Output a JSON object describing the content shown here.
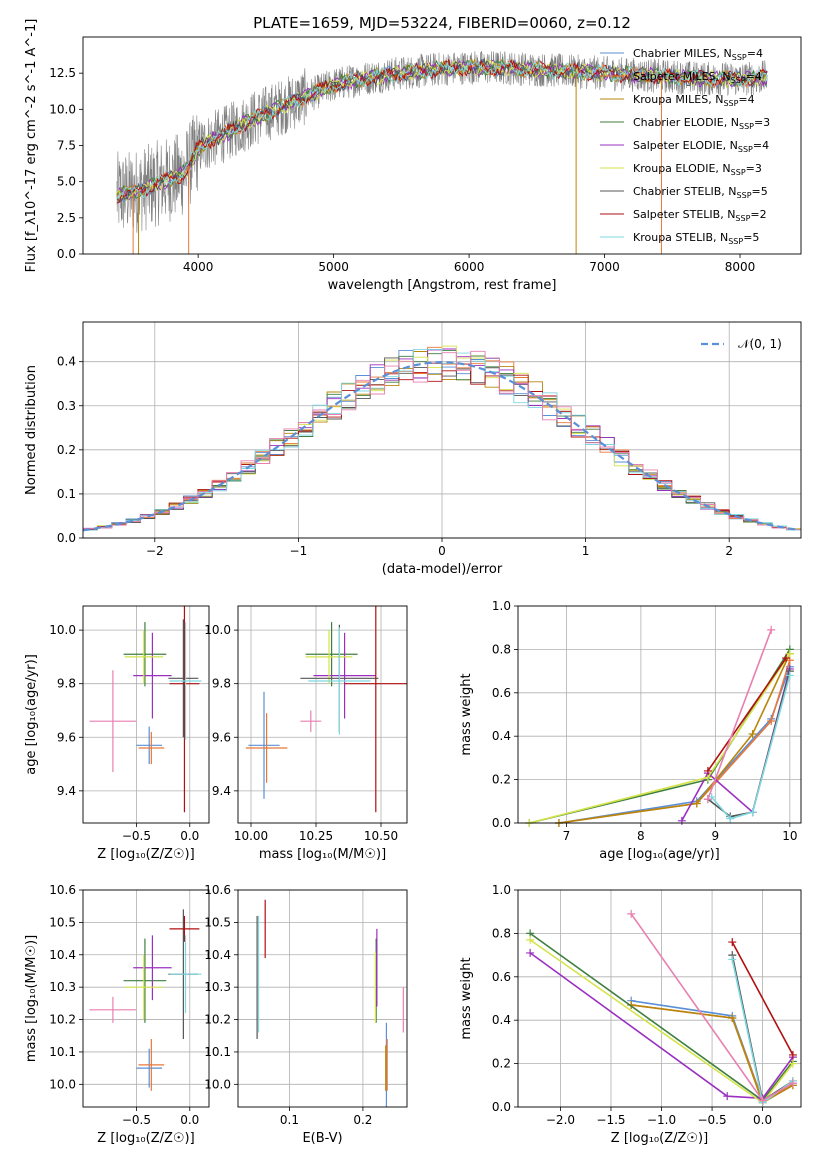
{
  "figure": {
    "title": "PLATE=1659, MJD=53224, FIBERID=0060, z=0.12"
  },
  "colors": {
    "Chabrier MILES": "#5b8fd6",
    "Salpeter MILES": "#e8773a",
    "Kroupa MILES": "#b8860b",
    "Chabrier ELODIE": "#3f7f3f",
    "Salpeter ELODIE": "#9b30c0",
    "Kroupa ELODIE": "#d4e34a",
    "Chabrier STELIB": "#555555",
    "Salpeter STELIB": "#b01010",
    "Kroupa STELIB": "#7fd8e0",
    "extra pink": "#e87fb0",
    "normal": "#5b8fd6",
    "data": "#808080"
  },
  "chart_data": [
    {
      "id": "spectrum",
      "type": "line",
      "xlabel": "wavelength [Angstrom, rest frame]",
      "ylabel": "Flux [f_λ10^-17 erg cm^-2 s^-1 A^-1]",
      "xlim": [
        3150,
        8450
      ],
      "ylim": [
        0,
        15.0
      ],
      "xticks": [
        4000,
        5000,
        6000,
        7000,
        8000
      ],
      "yticks": [
        0.0,
        2.5,
        5.0,
        7.5,
        10.0,
        12.5
      ],
      "ytick_labels": [
        "0.0",
        "2.5",
        "5.0",
        "7.5",
        "10.0",
        "12.5"
      ],
      "legend_location": "upper-right",
      "legend": [
        "Chabrier MILES, N_SSP=4",
        "Salpeter MILES, N_SSP=4",
        "Kroupa MILES, N_SSP=4",
        "Chabrier ELODIE, N_SSP=3",
        "Salpeter ELODIE, N_SSP=4",
        "Kroupa ELODIE, N_SSP=3",
        "Chabrier STELIB, N_SSP=5",
        "Salpeter STELIB, N_SSP=2",
        "Kroupa STELIB, N_SSP=5"
      ],
      "legend_main": [
        "Chabrier MILES, N",
        "Salpeter MILES, N",
        "Kroupa MILES, N",
        "Chabrier ELODIE, N",
        "Salpeter ELODIE, N",
        "Kroupa ELODIE, N",
        "Chabrier STELIB, N",
        "Salpeter STELIB, N",
        "Kroupa STELIB, N"
      ],
      "legend_sub": "SSP",
      "legend_n": [
        "=4",
        "=4",
        "=4",
        "=3",
        "=4",
        "=3",
        "=5",
        "=2",
        "=5"
      ],
      "continuum_x": [
        3400,
        3500,
        3600,
        3700,
        3800,
        3900,
        3950,
        4000,
        4100,
        4200,
        4300,
        4400,
        4500,
        4600,
        4700,
        4800,
        4900,
        5000,
        5200,
        5400,
        5600,
        5800,
        6000,
        6200,
        6400,
        6600,
        6800,
        7000,
        7200,
        7400,
        7600,
        7800,
        8000,
        8200
      ],
      "continuum_y": [
        4.1,
        4.2,
        4.5,
        4.9,
        5.2,
        5.6,
        6.4,
        7.3,
        7.9,
        8.3,
        8.8,
        9.3,
        9.7,
        10.1,
        10.5,
        10.9,
        11.3,
        11.7,
        12.1,
        12.4,
        12.6,
        12.8,
        12.9,
        12.9,
        12.8,
        12.7,
        12.6,
        12.5,
        12.4,
        12.3,
        12.2,
        12.1,
        12.1,
        12.2
      ]
    },
    {
      "id": "residuals",
      "type": "histogram",
      "xlabel": "(data-model)/error",
      "ylabel": "Normed distribution",
      "xlim": [
        -2.5,
        2.5
      ],
      "ylim": [
        0,
        0.49
      ],
      "xticks": [
        -2,
        -1,
        0,
        1,
        2
      ],
      "xtick_labels": [
        "−2",
        "−1",
        "0",
        "1",
        "2"
      ],
      "yticks": [
        0.0,
        0.1,
        0.2,
        0.3,
        0.4
      ],
      "ytick_labels": [
        "0.0",
        "0.1",
        "0.2",
        "0.3",
        "0.4"
      ],
      "legend_location": "top-right",
      "legend_label": "𝒩(0, 1)",
      "bin_width": 0.1
    },
    {
      "id": "age-vs-Z",
      "type": "errorbar",
      "xlabel": "Z [log₁₀(Z/Z☉)]",
      "ylabel": "age  [log₁₀(age/yr)]",
      "xlim": [
        -1.0,
        0.18
      ],
      "ylim": [
        9.28,
        10.09
      ],
      "xticks": [
        -0.5,
        0.0
      ],
      "xtick_labels": [
        "−0.5",
        "0.0"
      ],
      "yticks": [
        9.4,
        9.6,
        9.8,
        10.0
      ],
      "ytick_labels": [
        "9.4",
        "9.6",
        "9.8",
        "10.0"
      ],
      "points": [
        {
          "c": "Chabrier MILES",
          "x": -0.38,
          "xe": 0.12,
          "y": 9.57,
          "ye": 0.07
        },
        {
          "c": "Salpeter MILES",
          "x": -0.36,
          "xe": 0.12,
          "y": 9.56,
          "ye": 0.06
        },
        {
          "c": "Chabrier ELODIE",
          "x": -0.42,
          "xe": 0.2,
          "y": 9.91,
          "ye": 0.12
        },
        {
          "c": "Salpeter ELODIE",
          "x": -0.35,
          "xe": 0.18,
          "y": 9.83,
          "ye": 0.16
        },
        {
          "c": "Kroupa ELODIE",
          "x": -0.43,
          "xe": 0.18,
          "y": 9.9,
          "ye": 0.1
        },
        {
          "c": "Chabrier STELIB",
          "x": -0.06,
          "xe": 0.14,
          "y": 9.82,
          "ye": 0.22
        },
        {
          "c": "Salpeter STELIB",
          "x": -0.05,
          "xe": 0.14,
          "y": 9.8,
          "ye": 0.48
        },
        {
          "c": "Kroupa STELIB",
          "x": -0.04,
          "xe": 0.15,
          "y": 9.81,
          "ye": 0.22
        },
        {
          "c": "extra pink",
          "x": -0.72,
          "xe": 0.22,
          "y": 9.66,
          "ye": 0.19
        }
      ]
    },
    {
      "id": "age-vs-mass",
      "type": "errorbar",
      "xlabel": "mass [log₁₀(M/M☉)]",
      "ylabel": "",
      "xlim": [
        9.95,
        10.6
      ],
      "ylim": [
        9.28,
        10.09
      ],
      "xticks": [
        10.0,
        10.25,
        10.5
      ],
      "xtick_labels": [
        "10.00",
        "10.25",
        "10.50"
      ],
      "yticks": [
        9.4,
        9.6,
        9.8,
        10.0
      ],
      "ytick_labels": [
        "9.4",
        "9.6",
        "9.8",
        "10.0"
      ],
      "points": [
        {
          "c": "Chabrier MILES",
          "x": 10.05,
          "xe": 0.06,
          "y": 9.57,
          "ye": 0.2
        },
        {
          "c": "Salpeter MILES",
          "x": 10.06,
          "xe": 0.08,
          "y": 9.56,
          "ye": 0.13
        },
        {
          "c": "Chabrier ELODIE",
          "x": 10.31,
          "xe": 0.1,
          "y": 9.91,
          "ye": 0.12
        },
        {
          "c": "Salpeter ELODIE",
          "x": 10.36,
          "xe": 0.12,
          "y": 9.83,
          "ye": 0.16
        },
        {
          "c": "Kroupa ELODIE",
          "x": 10.3,
          "xe": 0.09,
          "y": 9.9,
          "ye": 0.1
        },
        {
          "c": "Chabrier STELIB",
          "x": 10.34,
          "xe": 0.15,
          "y": 9.82,
          "ye": 0.2
        },
        {
          "c": "Salpeter STELIB",
          "x": 10.48,
          "xe": 0.12,
          "y": 9.8,
          "ye": 0.48
        },
        {
          "c": "Kroupa STELIB",
          "x": 10.34,
          "xe": 0.12,
          "y": 9.81,
          "ye": 0.2
        },
        {
          "c": "extra pink",
          "x": 10.23,
          "xe": 0.04,
          "y": 9.66,
          "ye": 0.04
        }
      ]
    },
    {
      "id": "weight-vs-age",
      "type": "line",
      "xlabel": "age  [log₁₀(age/yr)]",
      "ylabel": "mass weight",
      "xlim": [
        6.35,
        10.15
      ],
      "ylim": [
        0.0,
        1.0
      ],
      "xticks": [
        7,
        8,
        9,
        10
      ],
      "xtick_labels": [
        "7",
        "8",
        "9",
        "10"
      ],
      "yticks": [
        0.0,
        0.2,
        0.4,
        0.6,
        0.8,
        1.0
      ],
      "ytick_labels": [
        "0.0",
        "0.2",
        "0.4",
        "0.6",
        "0.8",
        "1.0"
      ],
      "series": [
        {
          "c": "Chabrier MILES",
          "x": [
            6.9,
            8.75,
            9.75,
            10.0
          ],
          "y": [
            0.0,
            0.1,
            0.48,
            0.72
          ]
        },
        {
          "c": "Salpeter MILES",
          "x": [
            6.9,
            8.75,
            9.75,
            10.0
          ],
          "y": [
            0.0,
            0.09,
            0.47,
            0.75
          ]
        },
        {
          "c": "Kroupa MILES",
          "x": [
            6.9,
            8.75,
            9.5,
            10.0
          ],
          "y": [
            0.0,
            0.09,
            0.41,
            0.78
          ]
        },
        {
          "c": "Chabrier ELODIE",
          "x": [
            6.5,
            8.9,
            10.0
          ],
          "y": [
            0.0,
            0.2,
            0.8
          ]
        },
        {
          "c": "Salpeter ELODIE",
          "x": [
            8.55,
            8.9,
            9.5,
            10.0
          ],
          "y": [
            0.01,
            0.23,
            0.05,
            0.71
          ]
        },
        {
          "c": "Kroupa ELODIE",
          "x": [
            6.5,
            8.9,
            10.0
          ],
          "y": [
            0.0,
            0.21,
            0.78
          ]
        },
        {
          "c": "Chabrier STELIB",
          "x": [
            8.9,
            9.2,
            9.5,
            10.0
          ],
          "y": [
            0.11,
            0.03,
            0.05,
            0.7
          ]
        },
        {
          "c": "Salpeter STELIB",
          "x": [
            8.9,
            9.95
          ],
          "y": [
            0.24,
            0.76
          ]
        },
        {
          "c": "Kroupa STELIB",
          "x": [
            8.95,
            9.2,
            9.5,
            10.0
          ],
          "y": [
            0.12,
            0.02,
            0.05,
            0.68
          ]
        },
        {
          "c": "extra pink",
          "x": [
            8.9,
            9.75
          ],
          "y": [
            0.11,
            0.89
          ]
        }
      ]
    },
    {
      "id": "mass-vs-Z",
      "type": "errorbar",
      "xlabel": "Z [log₁₀(Z/Z☉)]",
      "ylabel": "mass [log₁₀(M/M☉)]",
      "xlim": [
        -1.0,
        0.18
      ],
      "ylim": [
        9.93,
        10.6
      ],
      "xticks": [
        -0.5,
        0.0
      ],
      "xtick_labels": [
        "−0.5",
        "0.0"
      ],
      "yticks": [
        10.0,
        10.1,
        10.2,
        10.3,
        10.4,
        10.5,
        10.6
      ],
      "ytick_labels": [
        "10.0",
        "10.1",
        "10.2",
        "10.3",
        "10.4",
        "10.5",
        "10.6"
      ],
      "points": [
        {
          "c": "Chabrier MILES",
          "x": -0.38,
          "xe": 0.12,
          "y": 10.05,
          "ye": 0.06
        },
        {
          "c": "Salpeter MILES",
          "x": -0.36,
          "xe": 0.12,
          "y": 10.06,
          "ye": 0.08
        },
        {
          "c": "Chabrier ELODIE",
          "x": -0.42,
          "xe": 0.2,
          "y": 10.32,
          "ye": 0.13
        },
        {
          "c": "Salpeter ELODIE",
          "x": -0.35,
          "xe": 0.18,
          "y": 10.36,
          "ye": 0.1
        },
        {
          "c": "Kroupa ELODIE",
          "x": -0.43,
          "xe": 0.18,
          "y": 10.3,
          "ye": 0.1
        },
        {
          "c": "Chabrier STELIB",
          "x": -0.06,
          "xe": 0.14,
          "y": 10.34,
          "ye": 0.2
        },
        {
          "c": "Salpeter STELIB",
          "x": -0.05,
          "xe": 0.14,
          "y": 10.48,
          "ye": 0.04
        },
        {
          "c": "Kroupa STELIB",
          "x": -0.04,
          "xe": 0.15,
          "y": 10.34,
          "ye": 0.12
        },
        {
          "c": "extra pink",
          "x": -0.72,
          "xe": 0.22,
          "y": 10.23,
          "ye": 0.04
        }
      ]
    },
    {
      "id": "mass-vs-EBV",
      "type": "errorbar",
      "xlabel": "E(B-V)",
      "ylabel": "",
      "xlim": [
        0.03,
        0.26
      ],
      "ylim": [
        9.93,
        10.6
      ],
      "xticks": [
        0.1,
        0.2
      ],
      "xtick_labels": [
        "0.1",
        "0.2"
      ],
      "yticks": [
        10.0,
        10.1,
        10.2,
        10.3,
        10.4,
        10.5,
        10.6
      ],
      "ytick_labels": [
        "10.0",
        "10.1",
        "10.2",
        "10.3",
        "10.4",
        "10.5",
        "10.6"
      ],
      "points": [
        {
          "c": "Chabrier MILES",
          "x": 0.232,
          "xe": 0.0,
          "y": 10.05,
          "ye": 0.14
        },
        {
          "c": "Salpeter MILES",
          "x": 0.233,
          "xe": 0.0,
          "y": 10.06,
          "ye": 0.08
        },
        {
          "c": "Kroupa MILES",
          "x": 0.231,
          "xe": 0.0,
          "y": 10.05,
          "ye": 0.07
        },
        {
          "c": "Chabrier ELODIE",
          "x": 0.218,
          "xe": 0.0,
          "y": 10.32,
          "ye": 0.13
        },
        {
          "c": "Salpeter ELODIE",
          "x": 0.219,
          "xe": 0.0,
          "y": 10.36,
          "ye": 0.12
        },
        {
          "c": "Kroupa ELODIE",
          "x": 0.217,
          "xe": 0.0,
          "y": 10.3,
          "ye": 0.11
        },
        {
          "c": "Chabrier STELIB",
          "x": 0.056,
          "xe": 0.0,
          "y": 10.33,
          "ye": 0.19
        },
        {
          "c": "Salpeter STELIB",
          "x": 0.067,
          "xe": 0.0,
          "y": 10.48,
          "ye": 0.09
        },
        {
          "c": "Kroupa STELIB",
          "x": 0.058,
          "xe": 0.0,
          "y": 10.34,
          "ye": 0.18
        },
        {
          "c": "extra pink",
          "x": 0.255,
          "xe": 0.0,
          "y": 10.23,
          "ye": 0.07
        }
      ]
    },
    {
      "id": "weight-vs-Z",
      "type": "line",
      "xlabel": "Z [log₁₀(Z/Z☉)]",
      "ylabel": "mass weight",
      "xlim": [
        -2.42,
        0.38
      ],
      "ylim": [
        0.0,
        1.0
      ],
      "xticks": [
        -2.0,
        -1.5,
        -1.0,
        -0.5,
        0.0
      ],
      "xtick_labels": [
        "−2.0",
        "−1.5",
        "−1.0",
        "−0.5",
        "0.0"
      ],
      "yticks": [
        0.0,
        0.2,
        0.4,
        0.6,
        0.8,
        1.0
      ],
      "ytick_labels": [
        "0.0",
        "0.2",
        "0.4",
        "0.6",
        "0.8",
        "1.0"
      ],
      "series": [
        {
          "c": "Chabrier MILES",
          "x": [
            -1.3,
            -0.3,
            0.0,
            0.3
          ],
          "y": [
            0.49,
            0.42,
            0.03,
            0.11
          ]
        },
        {
          "c": "Salpeter MILES",
          "x": [
            -1.3,
            -0.3,
            0.0,
            0.3
          ],
          "y": [
            0.47,
            0.41,
            0.03,
            0.1
          ]
        },
        {
          "c": "Kroupa MILES",
          "x": [
            -1.3,
            -0.3,
            0.0,
            0.3
          ],
          "y": [
            0.47,
            0.41,
            0.02,
            0.1
          ]
        },
        {
          "c": "Chabrier ELODIE",
          "x": [
            -2.3,
            0.0,
            0.3
          ],
          "y": [
            0.8,
            0.03,
            0.21
          ]
        },
        {
          "c": "Salpeter ELODIE",
          "x": [
            -2.3,
            -0.35,
            0.0,
            0.3
          ],
          "y": [
            0.71,
            0.05,
            0.04,
            0.23
          ]
        },
        {
          "c": "Kroupa ELODIE",
          "x": [
            -2.3,
            0.0,
            0.3
          ],
          "y": [
            0.77,
            0.02,
            0.2
          ]
        },
        {
          "c": "Chabrier STELIB",
          "x": [
            -0.3,
            0.0,
            0.3
          ],
          "y": [
            0.7,
            0.03,
            0.12
          ]
        },
        {
          "c": "Salpeter STELIB",
          "x": [
            -0.3,
            0.3
          ],
          "y": [
            0.76,
            0.24
          ]
        },
        {
          "c": "Kroupa STELIB",
          "x": [
            -0.3,
            0.0,
            0.3
          ],
          "y": [
            0.68,
            0.02,
            0.12
          ]
        },
        {
          "c": "extra pink",
          "x": [
            -1.3,
            0.0,
            0.3
          ],
          "y": [
            0.89,
            0.03,
            0.11
          ]
        }
      ]
    }
  ]
}
